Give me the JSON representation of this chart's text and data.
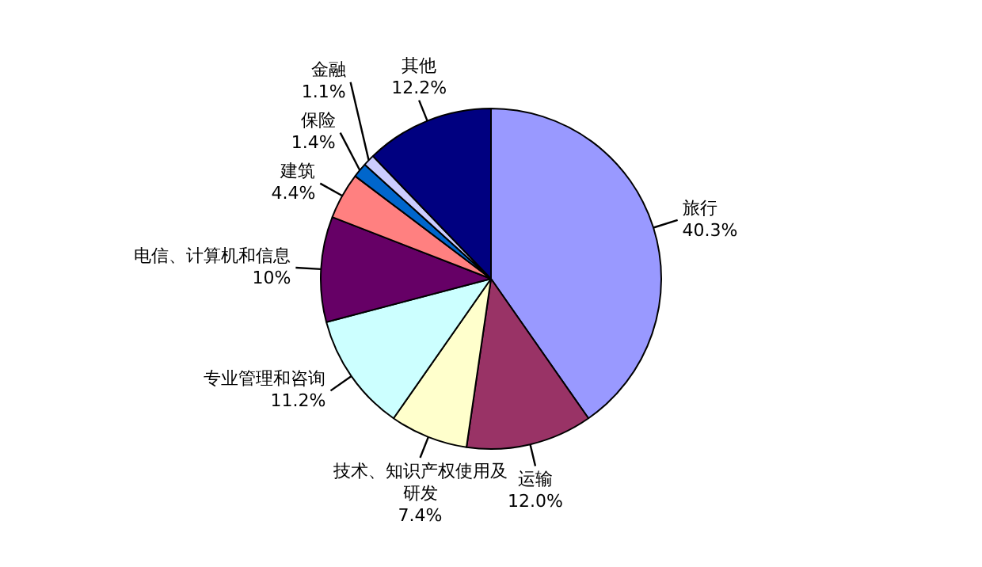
{
  "chart_data": {
    "type": "pie",
    "categories": [
      "旅行",
      "运输",
      "技术、知识产权使用及研发",
      "专业管理和咨询",
      "电信、计算机和信息",
      "建筑",
      "保险",
      "金融",
      "其他"
    ],
    "values": [
      40.3,
      12.0,
      7.4,
      11.2,
      10,
      4.4,
      1.4,
      1.1,
      12.2
    ],
    "value_labels": [
      "40.3%",
      "12.0%",
      "7.4%",
      "11.2%",
      "10%",
      "4.4%",
      "1.4%",
      "1.1%",
      "12.2%"
    ],
    "colors": [
      "#9999ff",
      "#993366",
      "#ffffcc",
      "#ccffff",
      "#660066",
      "#ff8080",
      "#0066cc",
      "#ccccff",
      "#000080"
    ]
  }
}
